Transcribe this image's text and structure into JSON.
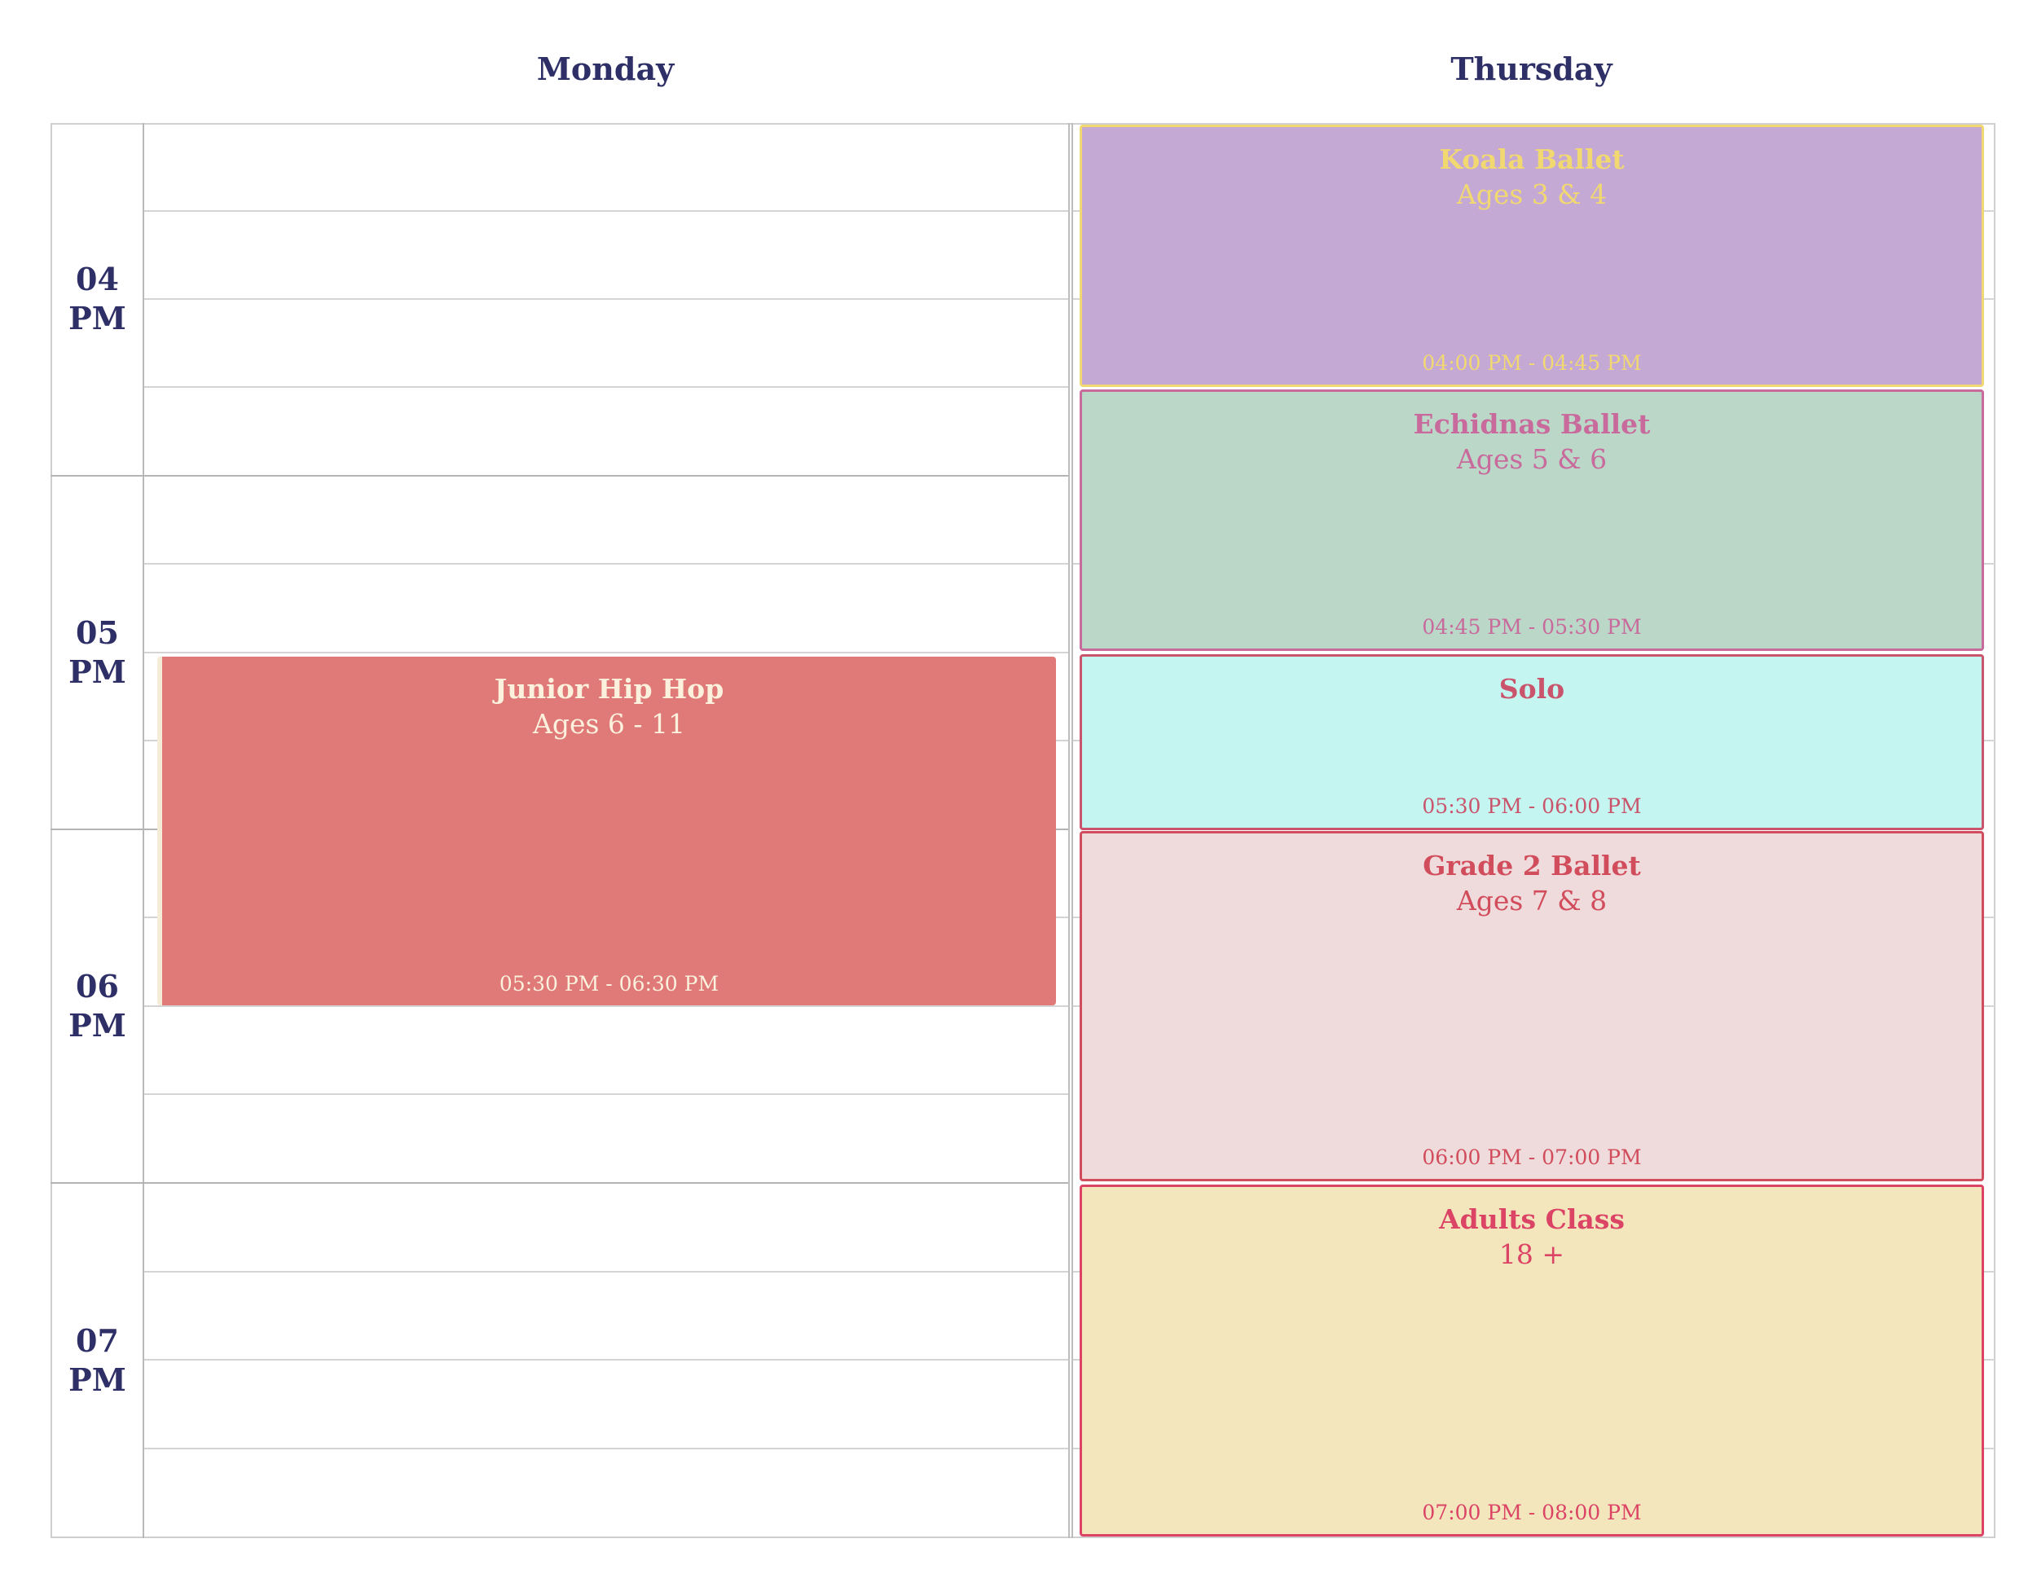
{
  "days": [
    "Monday",
    "Thursday"
  ],
  "hours": [
    {
      "hour": "04",
      "ampm": "PM"
    },
    {
      "hour": "05",
      "ampm": "PM"
    },
    {
      "hour": "06",
      "ampm": "PM"
    },
    {
      "hour": "07",
      "ampm": "PM"
    }
  ],
  "events": {
    "junior_hip_hop": {
      "day": "Monday",
      "title": "Junior Hip Hop",
      "subtitle": "Ages 6 - 11",
      "time": "05:30 PM - 06:30 PM",
      "color": "#df7a78",
      "text_color": "#fbf1dd"
    },
    "koala_ballet": {
      "day": "Thursday",
      "title": "Koala Ballet",
      "subtitle": "Ages 3 & 4",
      "time": "04:00 PM - 04:45 PM",
      "color": "#c4a9d5",
      "text_color": "#f2d871"
    },
    "echidnas_ballet": {
      "day": "Thursday",
      "title": "Echidnas Ballet",
      "subtitle": "Ages 5 & 6",
      "time": "04:45 PM - 05:30 PM",
      "color": "#bad7c8",
      "text_color": "#c96a9c"
    },
    "solo": {
      "day": "Thursday",
      "title": "Solo",
      "subtitle": "",
      "time": "05:30 PM - 06:00 PM",
      "color": "#c5f5f0",
      "text_color": "#c9546c"
    },
    "grade_2_ballet": {
      "day": "Thursday",
      "title": "Grade 2 Ballet",
      "subtitle": "Ages 7 & 8",
      "time": "06:00 PM - 07:00 PM",
      "color": "#efdadc",
      "text_color": "#d14d5c"
    },
    "adults_class": {
      "day": "Thursday",
      "title": "Adults Class",
      "subtitle": "18 +",
      "time": "07:00 PM - 08:00 PM",
      "color": "#f3e6bd",
      "text_color": "#dc4466"
    }
  }
}
